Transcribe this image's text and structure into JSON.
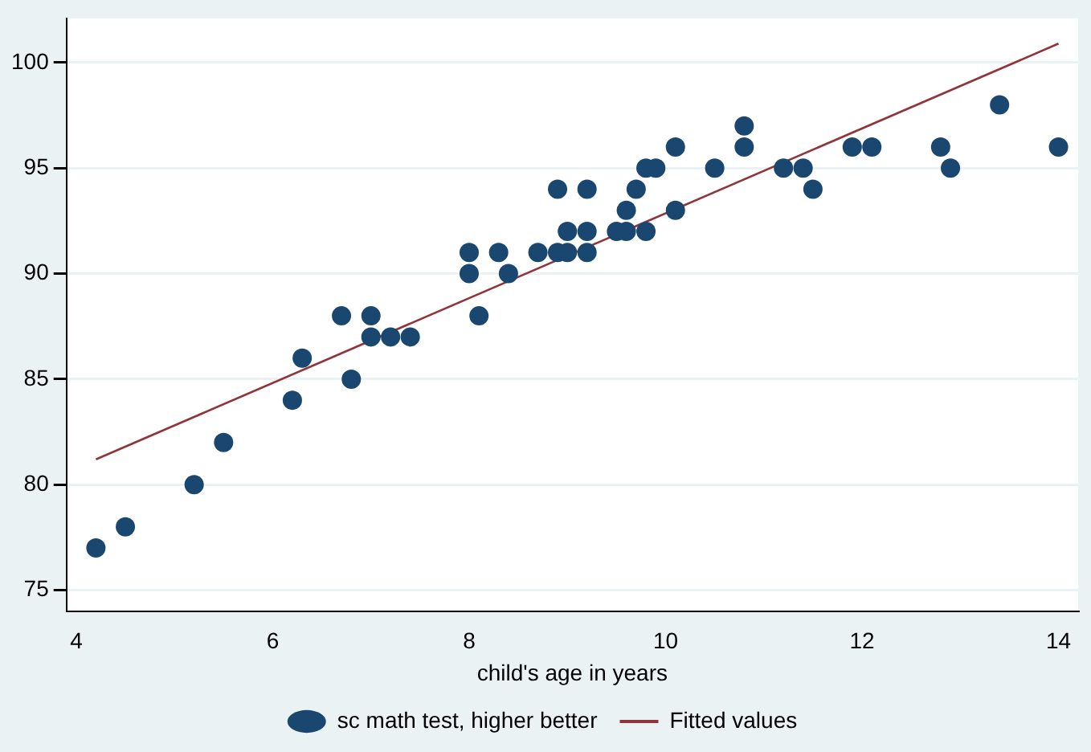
{
  "chart_data": {
    "type": "scatter",
    "xlabel": "child's age in years",
    "xlim": [
      3.9,
      14.2
    ],
    "xticks": [
      4,
      6,
      8,
      10,
      12,
      14
    ],
    "ylim": [
      74,
      102.1
    ],
    "yticks": [
      75,
      80,
      85,
      90,
      95,
      100
    ],
    "grid": "y",
    "legend": "bottom",
    "marker": "circle",
    "series": [
      {
        "name": "sc math test, higher better",
        "color": "#1a476f",
        "x": [
          4.2,
          4.5,
          5.2,
          5.5,
          6.2,
          6.3,
          6.7,
          6.8,
          7.0,
          7.0,
          7.2,
          7.4,
          8.0,
          8.0,
          8.1,
          8.3,
          8.4,
          8.7,
          8.9,
          8.9,
          9.0,
          9.0,
          9.2,
          9.2,
          9.2,
          9.5,
          9.6,
          9.6,
          9.7,
          9.8,
          9.8,
          9.9,
          10.1,
          10.1,
          10.5,
          10.8,
          10.8,
          11.2,
          11.4,
          11.5,
          11.9,
          12.1,
          12.8,
          12.9,
          13.4,
          14.0
        ],
        "values": [
          77,
          78,
          80,
          82,
          84,
          86,
          88,
          85,
          88,
          87,
          87,
          87,
          91,
          90,
          88,
          91,
          90,
          91,
          94,
          91,
          91,
          92,
          94,
          92,
          91,
          92,
          92,
          93,
          94,
          92,
          95,
          95,
          96,
          93,
          95,
          97,
          96,
          95,
          95,
          94,
          96,
          96,
          96,
          95,
          98,
          96
        ]
      },
      {
        "name": "Fitted values",
        "type": "line",
        "color": "#90353b",
        "x": [
          4.2,
          14.0
        ],
        "values": [
          81.2,
          100.9
        ],
        "marker": "none"
      }
    ]
  }
}
